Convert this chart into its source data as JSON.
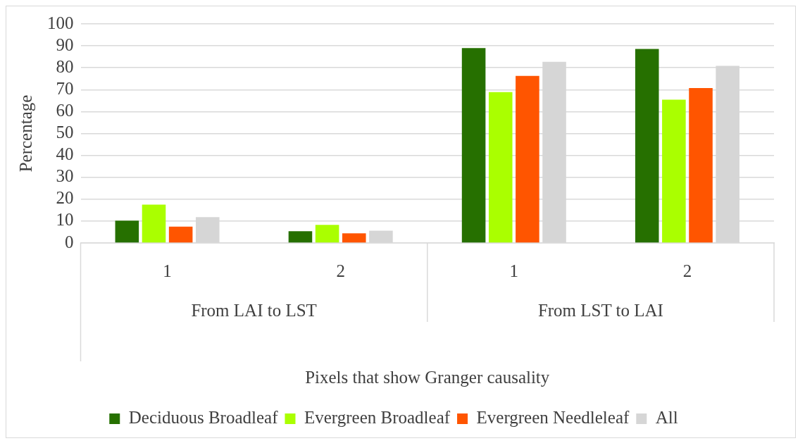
{
  "chart_data": {
    "type": "bar",
    "ylabel": "Percentage",
    "xlabel": "Pixels that show Granger causality",
    "categories": [
      "1",
      "2",
      "1",
      "2"
    ],
    "annotations": [
      "From LAI to LST",
      "From LST to LAI"
    ],
    "series": [
      {
        "name": "Deciduous Broadleaf",
        "color": "#267000",
        "values": [
          10.2,
          5.4,
          89.0,
          88.6
        ]
      },
      {
        "name": "Evergreen Broadleaf",
        "color": "#aaff00",
        "values": [
          17.5,
          8.3,
          68.9,
          65.4
        ]
      },
      {
        "name": "Evergreen Needleleaf",
        "color": "#ff5500",
        "values": [
          7.5,
          4.4,
          76.3,
          70.7
        ]
      },
      {
        "name": "All",
        "color": "#d6d6d6",
        "values": [
          11.8,
          5.6,
          82.7,
          80.9
        ]
      }
    ],
    "ylim": [
      0,
      100
    ],
    "yticks": [
      0,
      10,
      20,
      30,
      40,
      50,
      60,
      70,
      80,
      90,
      100
    ],
    "grid": "y",
    "legend": "bottom"
  }
}
